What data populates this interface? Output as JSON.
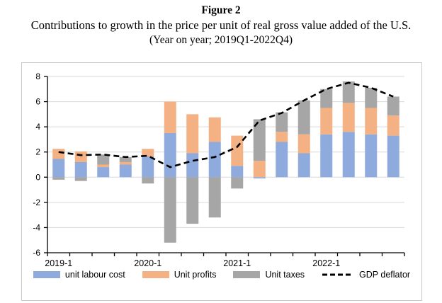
{
  "title": {
    "figure_label": "Figure 2",
    "line1": "Contributions to growth in the price per unit of real gross value added of the U.S.",
    "line2": "(Year on year; 2019Q1-2022Q4)"
  },
  "colors": {
    "unit_labour_cost": "#8FAADC",
    "unit_profits": "#F4B183",
    "unit_taxes": "#A6A6A6",
    "gdp_deflator_line": "#000000",
    "gridline": "#D9D9D9",
    "axis": "#000000",
    "figure_border": "#C9C9C9"
  },
  "chart_data": {
    "type": "bar",
    "stacked": true,
    "grid": true,
    "legend_position": "bottom",
    "categories": [
      "2019Q1",
      "2019Q2",
      "2019Q3",
      "2019Q4",
      "2020Q1",
      "2020Q2",
      "2020Q3",
      "2020Q4",
      "2021Q1",
      "2021Q2",
      "2021Q3",
      "2021Q4",
      "2022Q1",
      "2022Q2",
      "2022Q3",
      "2022Q4"
    ],
    "x_tick_labels": [
      "2019-1",
      "2020-1",
      "2021-1",
      "2022-1"
    ],
    "x_tick_label_indices": [
      0,
      4,
      8,
      12
    ],
    "ylim": [
      -6,
      8
    ],
    "yticks": [
      8,
      6,
      4,
      2,
      0,
      -2,
      -4,
      -6
    ],
    "series": [
      {
        "name": "unit labour cost",
        "color": "#8FAADC",
        "values": [
          1.45,
          1.2,
          0.8,
          1.0,
          1.65,
          3.5,
          1.9,
          2.8,
          0.9,
          -0.1,
          2.8,
          1.9,
          3.4,
          3.6,
          3.4,
          3.3
        ]
      },
      {
        "name": "Unit profits",
        "color": "#F4B183",
        "values": [
          0.8,
          0.85,
          0.2,
          0.2,
          0.6,
          2.5,
          3.1,
          1.95,
          2.4,
          1.3,
          0.8,
          1.5,
          2.1,
          2.3,
          2.1,
          1.6
        ]
      },
      {
        "name": "Unit taxes",
        "color": "#A6A6A6",
        "values": [
          -0.2,
          -0.3,
          0.8,
          0.4,
          -0.5,
          -5.2,
          -3.7,
          -3.2,
          -0.9,
          3.3,
          1.55,
          2.7,
          1.5,
          1.7,
          1.6,
          1.5
        ]
      }
    ],
    "line_series": {
      "name": "GDP deflator",
      "style": "dashed",
      "color": "#000000",
      "values": [
        2.0,
        1.75,
        1.8,
        1.6,
        1.7,
        0.8,
        1.3,
        1.6,
        2.4,
        4.5,
        5.1,
        6.1,
        7.0,
        7.5,
        7.1,
        6.4
      ]
    }
  }
}
